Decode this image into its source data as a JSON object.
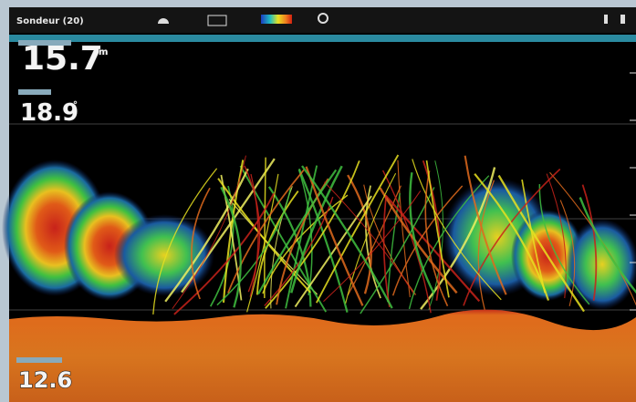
{
  "header": {
    "title": "Sondeur (20)"
  },
  "readouts": {
    "depth": "15.7",
    "depth_unit": "m",
    "temperature": "18.9",
    "temperature_unit": "°",
    "bottom": "12.6"
  }
}
